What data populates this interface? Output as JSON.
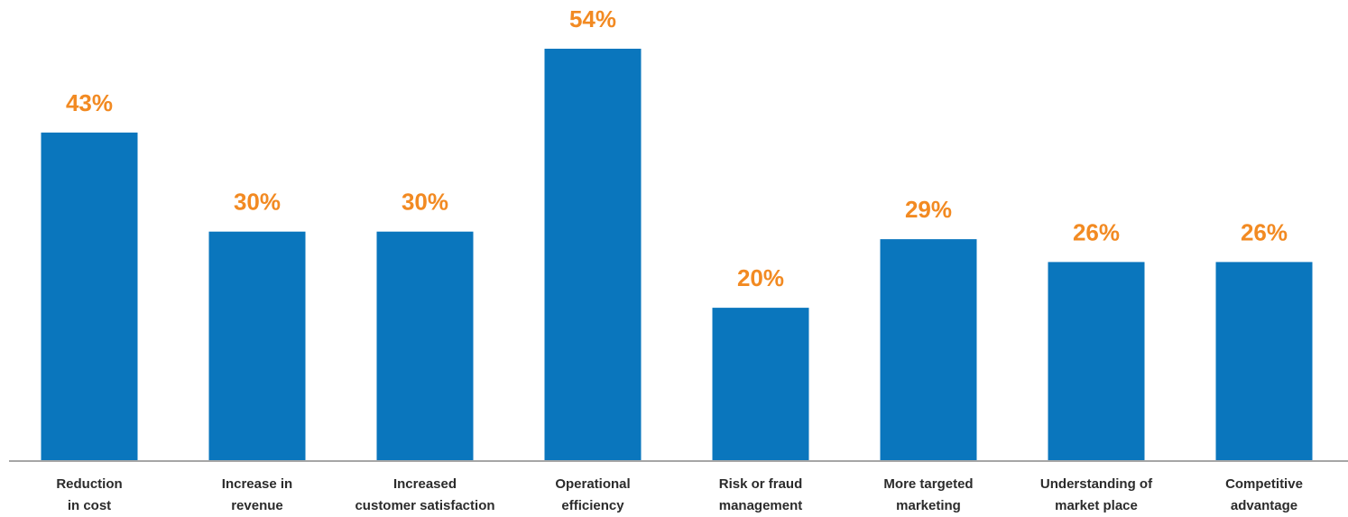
{
  "chart_data": {
    "type": "bar",
    "categories": [
      "Reduction in cost",
      "Increase in revenue",
      "Increased customer satisfaction",
      "Operational efficiency",
      "Risk or fraud management",
      "More targeted marketing",
      "Understanding of market place",
      "Competitive advantage"
    ],
    "category_label_lines": [
      [
        "Reduction",
        "in cost"
      ],
      [
        "Increase in",
        "revenue"
      ],
      [
        "Increased",
        "customer satisfaction"
      ],
      [
        "Operational",
        "efficiency"
      ],
      [
        "Risk or fraud",
        "management"
      ],
      [
        "More targeted",
        "marketing"
      ],
      [
        "Understanding of",
        "market place"
      ],
      [
        "Competitive",
        "advantage"
      ]
    ],
    "values": [
      43,
      30,
      30,
      54,
      20,
      29,
      26,
      26
    ],
    "value_labels": [
      "43%",
      "30%",
      "30%",
      "54%",
      "20%",
      "29%",
      "26%",
      "26%"
    ],
    "title": "",
    "xlabel": "",
    "ylabel": "",
    "ylim": [
      0,
      54
    ],
    "grid": false,
    "legend": "none",
    "colors": {
      "bar": "#0a76bd",
      "value_label": "#f28a22",
      "axis": "#a6a6a6",
      "category_label": "#2b2b2b"
    }
  }
}
